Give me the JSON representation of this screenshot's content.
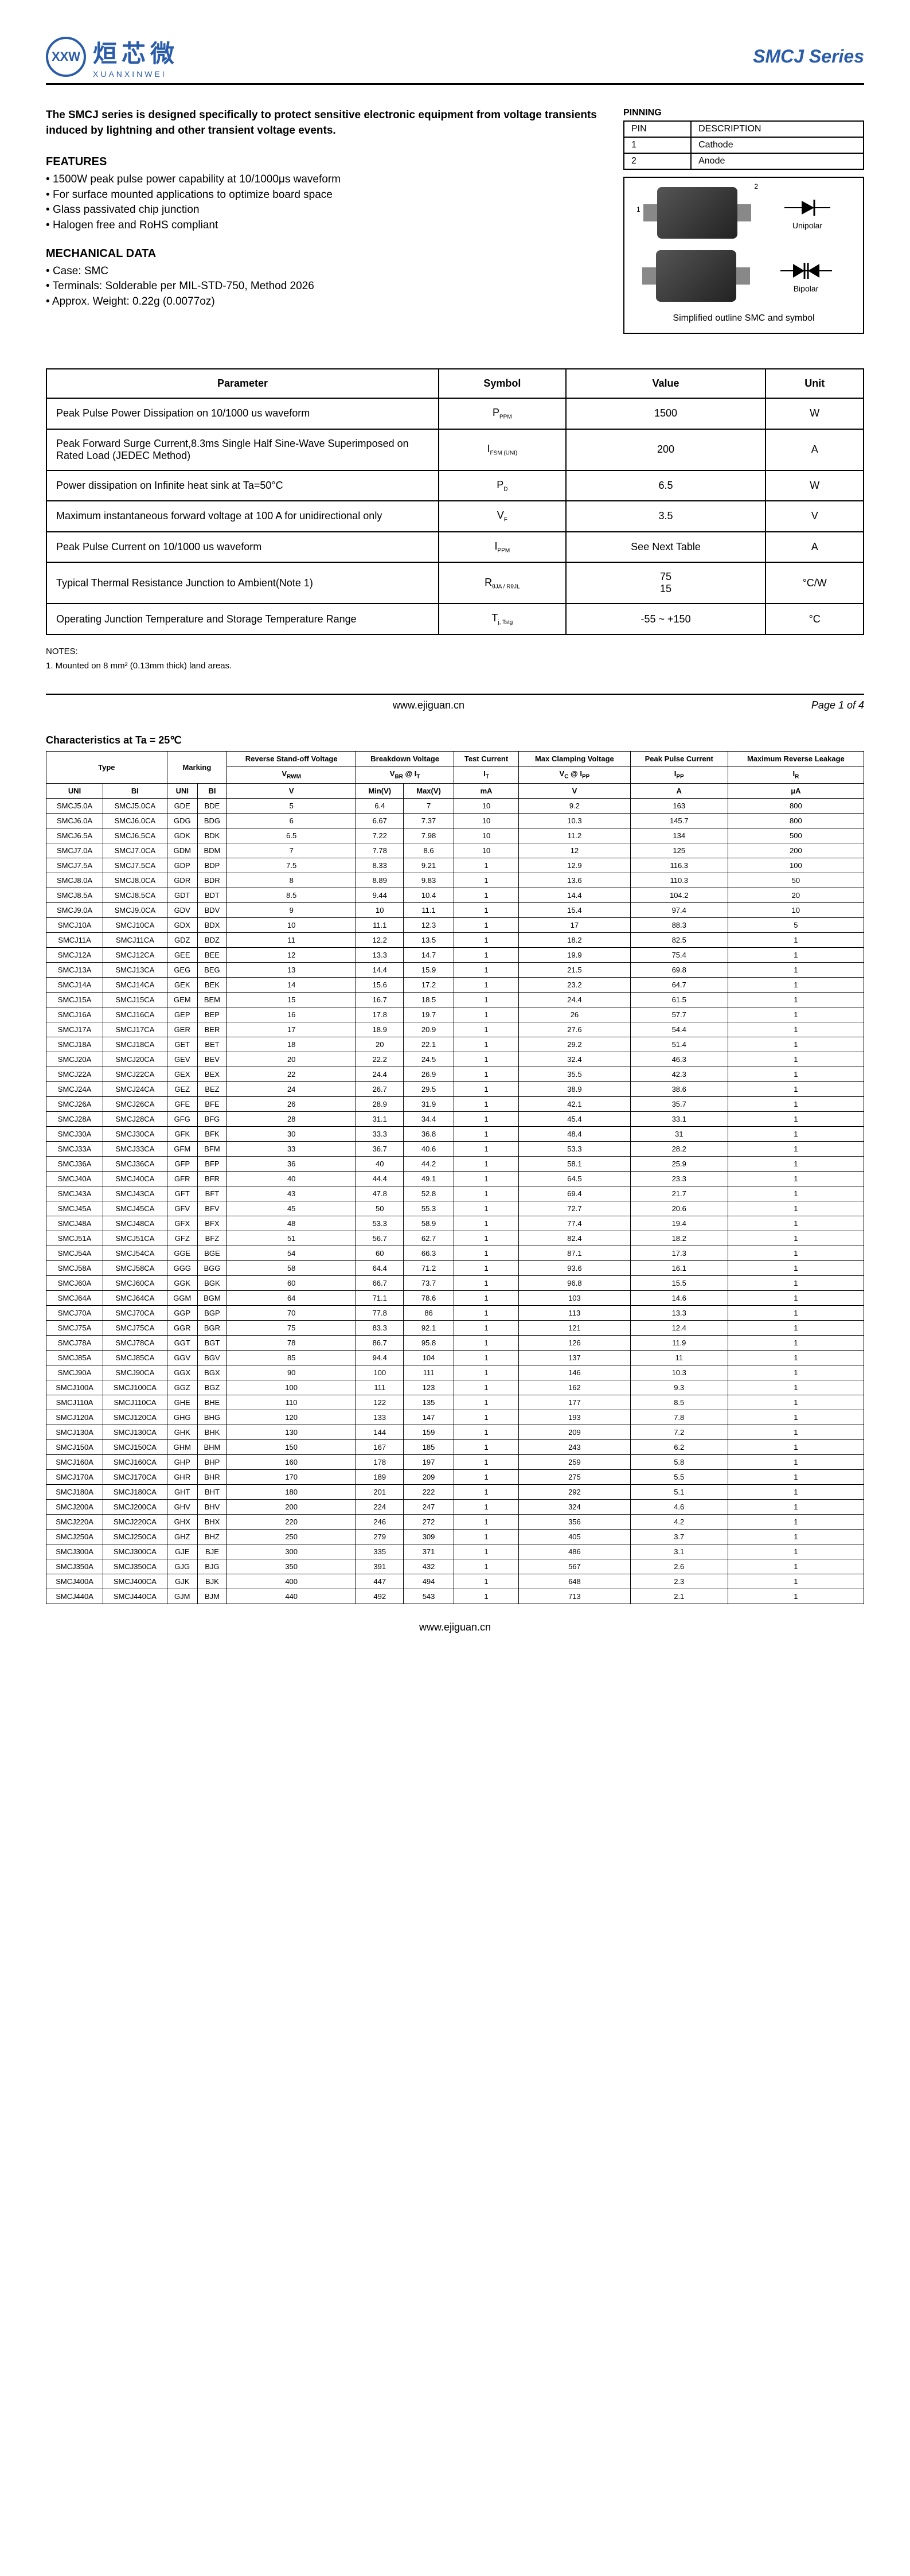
{
  "header": {
    "logo_abbr": "XXW",
    "logo_cn": "烜芯微",
    "logo_en": "XUANXINWEI",
    "series": "SMCJ Series"
  },
  "description": "The SMCJ series is designed specifically to protect sensitive electronic equipment from voltage transients induced by lightning and other transient voltage events.",
  "features_h": "FEATURES",
  "features": [
    "1500W peak pulse power capability at 10/1000μs waveform",
    "For surface mounted applications to optimize board space",
    "Glass passivated chip junction",
    "Halogen free and RoHS compliant"
  ],
  "mech_h": "MECHANICAL DATA",
  "mech": [
    "Case: SMC",
    "Terminals: Solderable per MIL-STD-750, Method 2026",
    "Approx. Weight: 0.22g (0.0077oz)"
  ],
  "pinning": {
    "label": "PINNING",
    "h1": "PIN",
    "h2": "DESCRIPTION",
    "rows": [
      [
        "1",
        "Cathode"
      ],
      [
        "2",
        "Anode"
      ]
    ]
  },
  "outline": {
    "uni": "Unipolar",
    "bi": "Bipolar",
    "caption": "Simplified outline SMC and symbol"
  },
  "param_headers": [
    "Parameter",
    "Symbol",
    "Value",
    "Unit"
  ],
  "params": [
    {
      "p": "Peak Pulse Power Dissipation on 10/1000 us waveform",
      "s": "P",
      "sub": "PPM",
      "v": "1500",
      "u": "W"
    },
    {
      "p": "Peak Forward Surge Current,8.3ms Single Half Sine-Wave Superimposed on Rated Load (JEDEC Method)",
      "s": "I",
      "sub": "FSM (UNI)",
      "v": "200",
      "u": "A"
    },
    {
      "p": "Power dissipation on Infinite heat sink at Ta=50°C",
      "s": "P",
      "sub": "D",
      "v": "6.5",
      "u": "W"
    },
    {
      "p": "Maximum instantaneous forward voltage at 100 A for unidirectional only",
      "s": "V",
      "sub": "F",
      "v": "3.5",
      "u": "V"
    },
    {
      "p": "Peak Pulse Current on 10/1000 us waveform",
      "s": "I",
      "sub": "PPM",
      "v": "See Next Table",
      "u": "A"
    },
    {
      "p": "Typical Thermal Resistance Junction to Ambient(Note 1)",
      "s": "R",
      "sub": "θJA / RθJL",
      "v": "75\n15",
      "u": "°C/W"
    },
    {
      "p": "Operating Junction Temperature and Storage Temperature Range",
      "s": "T",
      "sub": "j, Tstg",
      "v": "-55 ~ +150",
      "u": "°C"
    }
  ],
  "notes_h": "NOTES:",
  "note1": "1. Mounted on 8 mm² (0.13mm thick) land areas.",
  "url": "www.ejiguan.cn",
  "page": "Page 1 of 4",
  "char_title": "Characteristics at Ta = 25℃",
  "char_h1": [
    "Type",
    "Marking",
    "Reverse Stand-off Voltage",
    "Breakdown Voltage",
    "Test Current",
    "Max Clamping Voltage",
    "Peak Pulse Current",
    "Maximum Reverse Leakage"
  ],
  "char_h2": [
    "",
    "",
    "V",
    "V",
    "I",
    "V",
    "I",
    "I"
  ],
  "char_h2b": [
    "",
    "",
    "RWM",
    "BR @ IT",
    "T",
    "C @ IPP",
    "PP",
    "R"
  ],
  "char_h3": [
    "UNI",
    "BI",
    "UNI",
    "BI",
    "V",
    "Min(V)",
    "Max(V)",
    "mA",
    "V",
    "A",
    "μA"
  ],
  "char_rows": [
    [
      "SMCJ5.0A",
      "SMCJ5.0CA",
      "GDE",
      "BDE",
      "5",
      "6.4",
      "7",
      "10",
      "9.2",
      "163",
      "800"
    ],
    [
      "SMCJ6.0A",
      "SMCJ6.0CA",
      "GDG",
      "BDG",
      "6",
      "6.67",
      "7.37",
      "10",
      "10.3",
      "145.7",
      "800"
    ],
    [
      "SMCJ6.5A",
      "SMCJ6.5CA",
      "GDK",
      "BDK",
      "6.5",
      "7.22",
      "7.98",
      "10",
      "11.2",
      "134",
      "500"
    ],
    [
      "SMCJ7.0A",
      "SMCJ7.0CA",
      "GDM",
      "BDM",
      "7",
      "7.78",
      "8.6",
      "10",
      "12",
      "125",
      "200"
    ],
    [
      "SMCJ7.5A",
      "SMCJ7.5CA",
      "GDP",
      "BDP",
      "7.5",
      "8.33",
      "9.21",
      "1",
      "12.9",
      "116.3",
      "100"
    ],
    [
      "SMCJ8.0A",
      "SMCJ8.0CA",
      "GDR",
      "BDR",
      "8",
      "8.89",
      "9.83",
      "1",
      "13.6",
      "110.3",
      "50"
    ],
    [
      "SMCJ8.5A",
      "SMCJ8.5CA",
      "GDT",
      "BDT",
      "8.5",
      "9.44",
      "10.4",
      "1",
      "14.4",
      "104.2",
      "20"
    ],
    [
      "SMCJ9.0A",
      "SMCJ9.0CA",
      "GDV",
      "BDV",
      "9",
      "10",
      "11.1",
      "1",
      "15.4",
      "97.4",
      "10"
    ],
    [
      "SMCJ10A",
      "SMCJ10CA",
      "GDX",
      "BDX",
      "10",
      "11.1",
      "12.3",
      "1",
      "17",
      "88.3",
      "5"
    ],
    [
      "SMCJ11A",
      "SMCJ11CA",
      "GDZ",
      "BDZ",
      "11",
      "12.2",
      "13.5",
      "1",
      "18.2",
      "82.5",
      "1"
    ],
    [
      "SMCJ12A",
      "SMCJ12CA",
      "GEE",
      "BEE",
      "12",
      "13.3",
      "14.7",
      "1",
      "19.9",
      "75.4",
      "1"
    ],
    [
      "SMCJ13A",
      "SMCJ13CA",
      "GEG",
      "BEG",
      "13",
      "14.4",
      "15.9",
      "1",
      "21.5",
      "69.8",
      "1"
    ],
    [
      "SMCJ14A",
      "SMCJ14CA",
      "GEK",
      "BEK",
      "14",
      "15.6",
      "17.2",
      "1",
      "23.2",
      "64.7",
      "1"
    ],
    [
      "SMCJ15A",
      "SMCJ15CA",
      "GEM",
      "BEM",
      "15",
      "16.7",
      "18.5",
      "1",
      "24.4",
      "61.5",
      "1"
    ],
    [
      "SMCJ16A",
      "SMCJ16CA",
      "GEP",
      "BEP",
      "16",
      "17.8",
      "19.7",
      "1",
      "26",
      "57.7",
      "1"
    ],
    [
      "SMCJ17A",
      "SMCJ17CA",
      "GER",
      "BER",
      "17",
      "18.9",
      "20.9",
      "1",
      "27.6",
      "54.4",
      "1"
    ],
    [
      "SMCJ18A",
      "SMCJ18CA",
      "GET",
      "BET",
      "18",
      "20",
      "22.1",
      "1",
      "29.2",
      "51.4",
      "1"
    ],
    [
      "SMCJ20A",
      "SMCJ20CA",
      "GEV",
      "BEV",
      "20",
      "22.2",
      "24.5",
      "1",
      "32.4",
      "46.3",
      "1"
    ],
    [
      "SMCJ22A",
      "SMCJ22CA",
      "GEX",
      "BEX",
      "22",
      "24.4",
      "26.9",
      "1",
      "35.5",
      "42.3",
      "1"
    ],
    [
      "SMCJ24A",
      "SMCJ24CA",
      "GEZ",
      "BEZ",
      "24",
      "26.7",
      "29.5",
      "1",
      "38.9",
      "38.6",
      "1"
    ],
    [
      "SMCJ26A",
      "SMCJ26CA",
      "GFE",
      "BFE",
      "26",
      "28.9",
      "31.9",
      "1",
      "42.1",
      "35.7",
      "1"
    ],
    [
      "SMCJ28A",
      "SMCJ28CA",
      "GFG",
      "BFG",
      "28",
      "31.1",
      "34.4",
      "1",
      "45.4",
      "33.1",
      "1"
    ],
    [
      "SMCJ30A",
      "SMCJ30CA",
      "GFK",
      "BFK",
      "30",
      "33.3",
      "36.8",
      "1",
      "48.4",
      "31",
      "1"
    ],
    [
      "SMCJ33A",
      "SMCJ33CA",
      "GFM",
      "BFM",
      "33",
      "36.7",
      "40.6",
      "1",
      "53.3",
      "28.2",
      "1"
    ],
    [
      "SMCJ36A",
      "SMCJ36CA",
      "GFP",
      "BFP",
      "36",
      "40",
      "44.2",
      "1",
      "58.1",
      "25.9",
      "1"
    ],
    [
      "SMCJ40A",
      "SMCJ40CA",
      "GFR",
      "BFR",
      "40",
      "44.4",
      "49.1",
      "1",
      "64.5",
      "23.3",
      "1"
    ],
    [
      "SMCJ43A",
      "SMCJ43CA",
      "GFT",
      "BFT",
      "43",
      "47.8",
      "52.8",
      "1",
      "69.4",
      "21.7",
      "1"
    ],
    [
      "SMCJ45A",
      "SMCJ45CA",
      "GFV",
      "BFV",
      "45",
      "50",
      "55.3",
      "1",
      "72.7",
      "20.6",
      "1"
    ],
    [
      "SMCJ48A",
      "SMCJ48CA",
      "GFX",
      "BFX",
      "48",
      "53.3",
      "58.9",
      "1",
      "77.4",
      "19.4",
      "1"
    ],
    [
      "SMCJ51A",
      "SMCJ51CA",
      "GFZ",
      "BFZ",
      "51",
      "56.7",
      "62.7",
      "1",
      "82.4",
      "18.2",
      "1"
    ],
    [
      "SMCJ54A",
      "SMCJ54CA",
      "GGE",
      "BGE",
      "54",
      "60",
      "66.3",
      "1",
      "87.1",
      "17.3",
      "1"
    ],
    [
      "SMCJ58A",
      "SMCJ58CA",
      "GGG",
      "BGG",
      "58",
      "64.4",
      "71.2",
      "1",
      "93.6",
      "16.1",
      "1"
    ],
    [
      "SMCJ60A",
      "SMCJ60CA",
      "GGK",
      "BGK",
      "60",
      "66.7",
      "73.7",
      "1",
      "96.8",
      "15.5",
      "1"
    ],
    [
      "SMCJ64A",
      "SMCJ64CA",
      "GGM",
      "BGM",
      "64",
      "71.1",
      "78.6",
      "1",
      "103",
      "14.6",
      "1"
    ],
    [
      "SMCJ70A",
      "SMCJ70CA",
      "GGP",
      "BGP",
      "70",
      "77.8",
      "86",
      "1",
      "113",
      "13.3",
      "1"
    ],
    [
      "SMCJ75A",
      "SMCJ75CA",
      "GGR",
      "BGR",
      "75",
      "83.3",
      "92.1",
      "1",
      "121",
      "12.4",
      "1"
    ],
    [
      "SMCJ78A",
      "SMCJ78CA",
      "GGT",
      "BGT",
      "78",
      "86.7",
      "95.8",
      "1",
      "126",
      "11.9",
      "1"
    ],
    [
      "SMCJ85A",
      "SMCJ85CA",
      "GGV",
      "BGV",
      "85",
      "94.4",
      "104",
      "1",
      "137",
      "11",
      "1"
    ],
    [
      "SMCJ90A",
      "SMCJ90CA",
      "GGX",
      "BGX",
      "90",
      "100",
      "111",
      "1",
      "146",
      "10.3",
      "1"
    ],
    [
      "SMCJ100A",
      "SMCJ100CA",
      "GGZ",
      "BGZ",
      "100",
      "111",
      "123",
      "1",
      "162",
      "9.3",
      "1"
    ],
    [
      "SMCJ110A",
      "SMCJ110CA",
      "GHE",
      "BHE",
      "110",
      "122",
      "135",
      "1",
      "177",
      "8.5",
      "1"
    ],
    [
      "SMCJ120A",
      "SMCJ120CA",
      "GHG",
      "BHG",
      "120",
      "133",
      "147",
      "1",
      "193",
      "7.8",
      "1"
    ],
    [
      "SMCJ130A",
      "SMCJ130CA",
      "GHK",
      "BHK",
      "130",
      "144",
      "159",
      "1",
      "209",
      "7.2",
      "1"
    ],
    [
      "SMCJ150A",
      "SMCJ150CA",
      "GHM",
      "BHM",
      "150",
      "167",
      "185",
      "1",
      "243",
      "6.2",
      "1"
    ],
    [
      "SMCJ160A",
      "SMCJ160CA",
      "GHP",
      "BHP",
      "160",
      "178",
      "197",
      "1",
      "259",
      "5.8",
      "1"
    ],
    [
      "SMCJ170A",
      "SMCJ170CA",
      "GHR",
      "BHR",
      "170",
      "189",
      "209",
      "1",
      "275",
      "5.5",
      "1"
    ],
    [
      "SMCJ180A",
      "SMCJ180CA",
      "GHT",
      "BHT",
      "180",
      "201",
      "222",
      "1",
      "292",
      "5.1",
      "1"
    ],
    [
      "SMCJ200A",
      "SMCJ200CA",
      "GHV",
      "BHV",
      "200",
      "224",
      "247",
      "1",
      "324",
      "4.6",
      "1"
    ],
    [
      "SMCJ220A",
      "SMCJ220CA",
      "GHX",
      "BHX",
      "220",
      "246",
      "272",
      "1",
      "356",
      "4.2",
      "1"
    ],
    [
      "SMCJ250A",
      "SMCJ250CA",
      "GHZ",
      "BHZ",
      "250",
      "279",
      "309",
      "1",
      "405",
      "3.7",
      "1"
    ],
    [
      "SMCJ300A",
      "SMCJ300CA",
      "GJE",
      "BJE",
      "300",
      "335",
      "371",
      "1",
      "486",
      "3.1",
      "1"
    ],
    [
      "SMCJ350A",
      "SMCJ350CA",
      "GJG",
      "BJG",
      "350",
      "391",
      "432",
      "1",
      "567",
      "2.6",
      "1"
    ],
    [
      "SMCJ400A",
      "SMCJ400CA",
      "GJK",
      "BJK",
      "400",
      "447",
      "494",
      "1",
      "648",
      "2.3",
      "1"
    ],
    [
      "SMCJ440A",
      "SMCJ440CA",
      "GJM",
      "BJM",
      "440",
      "492",
      "543",
      "1",
      "713",
      "2.1",
      "1"
    ]
  ]
}
